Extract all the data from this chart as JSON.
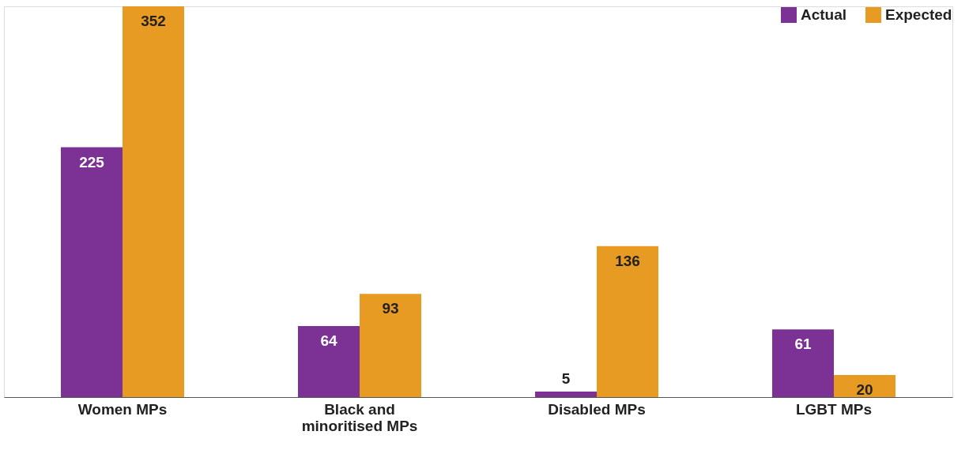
{
  "chart_data": {
    "type": "bar",
    "categories": [
      "Women MPs",
      "Black and minoritised MPs",
      "Disabled MPs",
      "LGBT MPs"
    ],
    "series": [
      {
        "name": "Actual",
        "color": "#7b3294",
        "values": [
          225,
          64,
          5,
          61
        ]
      },
      {
        "name": "Expected",
        "color": "#e89b23",
        "values": [
          352,
          93,
          136,
          20
        ]
      }
    ],
    "data_labels": true,
    "legend": "top right"
  }
}
